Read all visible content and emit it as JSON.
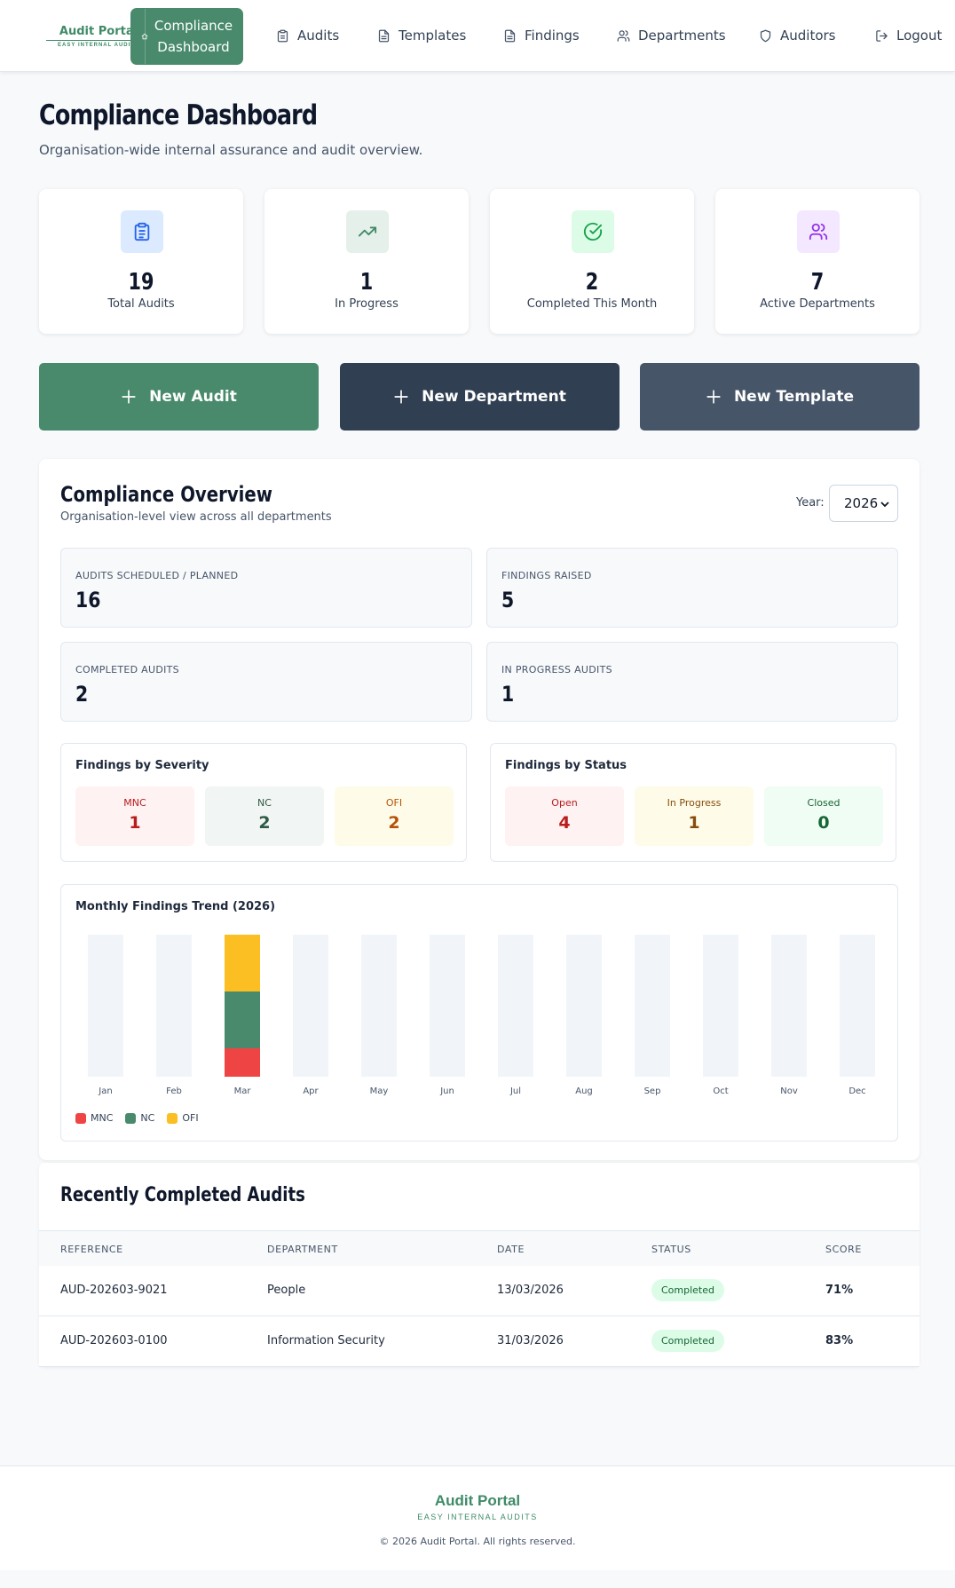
{
  "header": {
    "logo_main": "Audit Portal",
    "logo_sub": "EASY INTERNAL AUDITS",
    "active_nav": "Compliance Dashboard",
    "nav": [
      {
        "label": "Audits",
        "icon": "clipboard-icon"
      },
      {
        "label": "Templates",
        "icon": "file-icon"
      },
      {
        "label": "Findings",
        "icon": "file-icon"
      },
      {
        "label": "Departments",
        "icon": "users-icon"
      },
      {
        "label": "Auditors",
        "icon": "shield-icon"
      },
      {
        "label": "Logout",
        "icon": "logout-icon"
      }
    ]
  },
  "page": {
    "title": "Compliance Dashboard",
    "subtitle": "Organisation-wide internal assurance and audit overview."
  },
  "stats": [
    {
      "value": "19",
      "label": "Total Audits",
      "icon": "clipboard-icon",
      "color": "#2563eb",
      "bg": "#dbeafe"
    },
    {
      "value": "1",
      "label": "In Progress",
      "icon": "trending-up-icon",
      "color": "#3f8a67",
      "bg": "#e6f0eb"
    },
    {
      "value": "2",
      "label": "Completed This Month",
      "icon": "check-circle-icon",
      "color": "#16a34a",
      "bg": "#dcfce7"
    },
    {
      "value": "7",
      "label": "Active Departments",
      "icon": "users-icon",
      "color": "#9333ea",
      "bg": "#f3e8ff"
    }
  ],
  "actions": [
    {
      "label": "New Audit",
      "color": "#488a6b"
    },
    {
      "label": "New Department",
      "color": "#313f52"
    },
    {
      "label": "New Template",
      "color": "#475569"
    }
  ],
  "overview": {
    "title": "Compliance Overview",
    "subtitle": "Organisation-level view across all departments",
    "year_label": "Year:",
    "year": "2026",
    "metrics": [
      {
        "label": "AUDITS SCHEDULED / PLANNED",
        "value": "16"
      },
      {
        "label": "FINDINGS RAISED",
        "value": "5"
      },
      {
        "label": "COMPLETED AUDITS",
        "value": "2"
      },
      {
        "label": "IN PROGRESS AUDITS",
        "value": "1"
      }
    ],
    "severity": {
      "title": "Findings by Severity",
      "tiles": [
        {
          "label": "MNC",
          "value": "1",
          "color": "#b91c1c",
          "bg": "#fef2f2"
        },
        {
          "label": "NC",
          "value": "2",
          "color": "#2f5a46",
          "bg": "#f1f5f3"
        },
        {
          "label": "OFI",
          "value": "2",
          "color": "#b45309",
          "bg": "#fefce8"
        }
      ]
    },
    "status": {
      "title": "Findings by Status",
      "tiles": [
        {
          "label": "Open",
          "value": "4",
          "color": "#b91c1c",
          "bg": "#fef2f2"
        },
        {
          "label": "In Progress",
          "value": "1",
          "color": "#854d0e",
          "bg": "#fefce8"
        },
        {
          "label": "Closed",
          "value": "0",
          "color": "#166534",
          "bg": "#f0fdf4"
        }
      ]
    }
  },
  "chart_data": {
    "type": "bar",
    "stacked": true,
    "title": "Monthly Findings Trend (2026)",
    "categories": [
      "Jan",
      "Feb",
      "Mar",
      "Apr",
      "May",
      "Jun",
      "Jul",
      "Aug",
      "Sep",
      "Oct",
      "Nov",
      "Dec"
    ],
    "series": [
      {
        "name": "MNC",
        "color": "#ef4444",
        "values": [
          0,
          0,
          1,
          0,
          0,
          0,
          0,
          0,
          0,
          0,
          0,
          0
        ]
      },
      {
        "name": "NC",
        "color": "#488a6b",
        "values": [
          0,
          0,
          2,
          0,
          0,
          0,
          0,
          0,
          0,
          0,
          0,
          0
        ]
      },
      {
        "name": "OFI",
        "color": "#fbbf24",
        "values": [
          0,
          0,
          2,
          0,
          0,
          0,
          0,
          0,
          0,
          0,
          0,
          0
        ]
      }
    ],
    "ylim": [
      0,
      5
    ],
    "grid": false,
    "legend": "bottom-left"
  },
  "recent": {
    "title": "Recently Completed Audits",
    "columns": [
      "REFERENCE",
      "DEPARTMENT",
      "DATE",
      "STATUS",
      "SCORE"
    ],
    "rows": [
      {
        "reference": "AUD-202603-9021",
        "department": "People",
        "date": "13/03/2026",
        "status": "Completed",
        "score": "71%"
      },
      {
        "reference": "AUD-202603-0100",
        "department": "Information Security",
        "date": "31/03/2026",
        "status": "Completed",
        "score": "83%"
      }
    ]
  },
  "footer": {
    "logo_main": "Audit Portal",
    "logo_sub": "EASY INTERNAL AUDITS",
    "copyright": "© 2026 Audit Portal. All rights reserved."
  }
}
